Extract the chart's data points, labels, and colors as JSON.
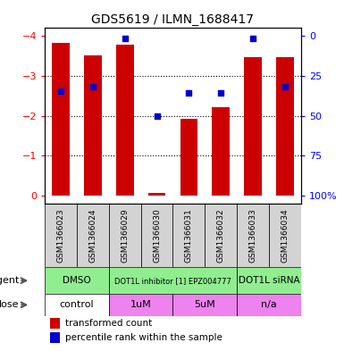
{
  "title": "GDS5619 / ILMN_1688417",
  "samples": [
    "GSM1366023",
    "GSM1366024",
    "GSM1366029",
    "GSM1366030",
    "GSM1366031",
    "GSM1366032",
    "GSM1366033",
    "GSM1366034"
  ],
  "bar_values": [
    -3.82,
    -3.52,
    -3.78,
    -0.05,
    -1.92,
    -2.22,
    -3.46,
    -3.46
  ],
  "blue_dot_values": [
    -2.62,
    -2.72,
    -3.95,
    -2.0,
    -2.58,
    -2.58,
    -3.95,
    -2.72
  ],
  "ylim_left": [
    -4.2,
    0.2
  ],
  "ylim_right": [
    -4.2,
    0.2
  ],
  "yticks_left": [
    0,
    -1,
    -2,
    -3,
    -4
  ],
  "yticks_right_vals": [
    0,
    -1,
    -2,
    -3,
    -4
  ],
  "yticks_right_labels": [
    "100%",
    "75",
    "50",
    "25",
    "0"
  ],
  "bar_color": "#cc0000",
  "dot_color": "#0000cc",
  "agent_groups": [
    {
      "label": "DMSO",
      "start": 0,
      "end": 2,
      "color": "#90ee90"
    },
    {
      "label": "DOT1L inhibitor [1] EPZ004777",
      "start": 2,
      "end": 6,
      "color": "#90ee90"
    },
    {
      "label": "DOT1L siRNA",
      "start": 6,
      "end": 8,
      "color": "#90ee90"
    }
  ],
  "dose_groups": [
    {
      "label": "control",
      "start": 0,
      "end": 2,
      "color": "#ffffff"
    },
    {
      "label": "1uM",
      "start": 2,
      "end": 4,
      "color": "#ee82ee"
    },
    {
      "label": "5uM",
      "start": 4,
      "end": 6,
      "color": "#ee82ee"
    },
    {
      "label": "n/a",
      "start": 6,
      "end": 8,
      "color": "#ee82ee"
    }
  ],
  "agent_label": "agent",
  "dose_label": "dose",
  "legend_bar_label": "transformed count",
  "legend_dot_label": "percentile rank within the sample",
  "bar_width": 0.55,
  "xtick_bg": "#d3d3d3",
  "top_label": "-0",
  "figsize": [
    3.85,
    3.93
  ],
  "dpi": 100
}
